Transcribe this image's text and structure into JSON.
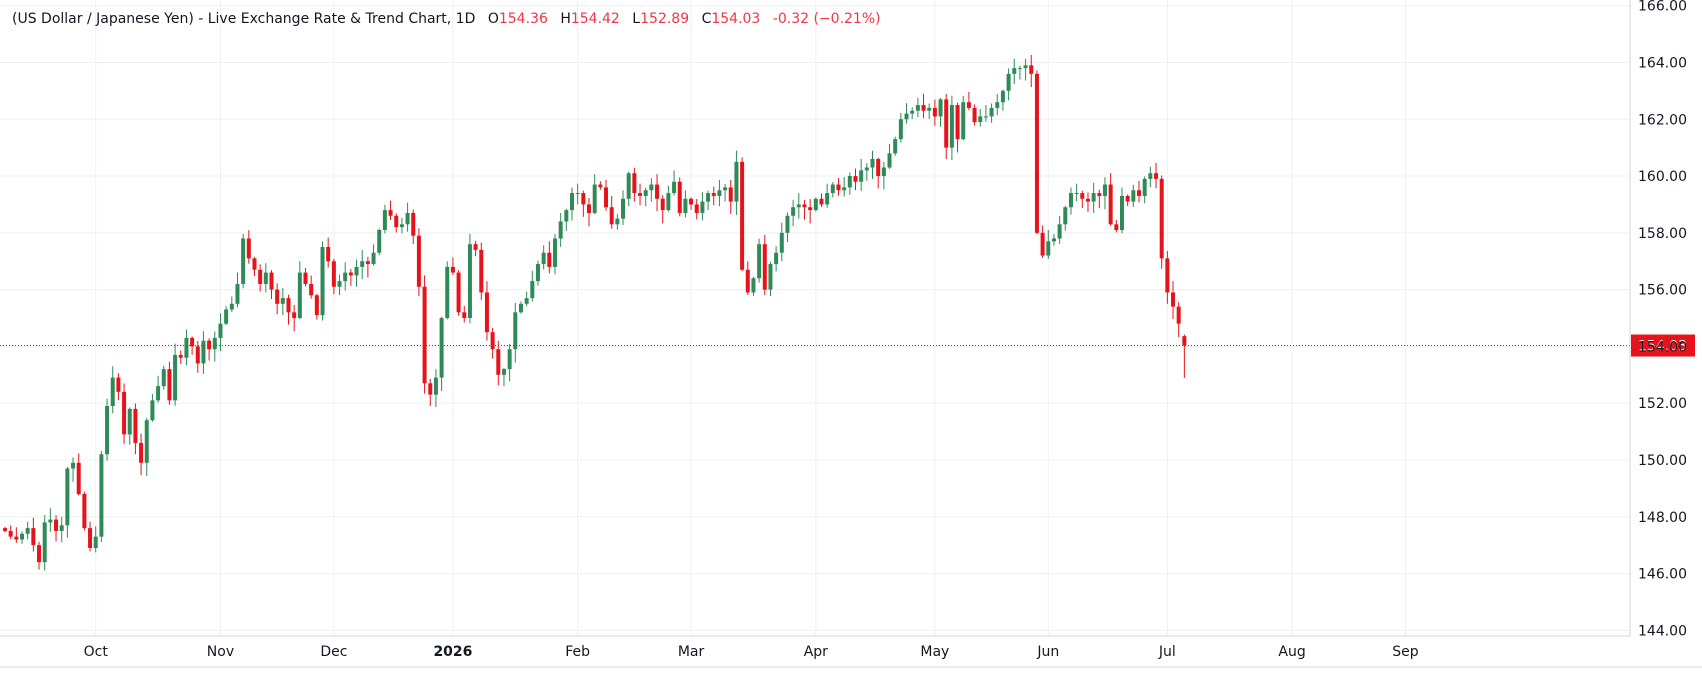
{
  "legend": {
    "title": "(US Dollar / Japanese Yen) - Live Exchange Rate & Trend Chart, 1D",
    "open_label": "O",
    "open": "154.36",
    "high_label": "H",
    "high": "154.42",
    "low_label": "L",
    "low": "152.89",
    "close_label": "C",
    "close": "154.03",
    "change": "-0.32 (−0.21%)"
  },
  "colors": {
    "up": "#2e8b57",
    "down": "#e8131a",
    "grid": "#eef0f3",
    "price_line": "#e8131a",
    "axis_text": "#131722"
  },
  "chart_data": {
    "type": "candlestick",
    "interval": "1D",
    "ylim": [
      143.8,
      166.2
    ],
    "y_ticks": [
      "144.00",
      "146.00",
      "148.00",
      "150.00",
      "152.00",
      "154.00",
      "156.00",
      "158.00",
      "160.00",
      "162.00",
      "164.00",
      "166.00"
    ],
    "x_labels": [
      {
        "text": "Oct",
        "index": 16
      },
      {
        "text": "Nov",
        "index": 38
      },
      {
        "text": "Dec",
        "index": 58
      },
      {
        "text": "2026",
        "index": 79,
        "bold": true
      },
      {
        "text": "Feb",
        "index": 101
      },
      {
        "text": "Mar",
        "index": 121
      },
      {
        "text": "Apr",
        "index": 143
      },
      {
        "text": "May",
        "index": 164
      },
      {
        "text": "Jun",
        "index": 184
      },
      {
        "text": "Jul",
        "index": 205
      },
      {
        "text": "Aug",
        "index": 227
      },
      {
        "text": "Sep",
        "index": 247
      }
    ],
    "last_price": 154.03,
    "last_price_label": "154.03",
    "closes": [
      147.5,
      147.3,
      147.2,
      147.4,
      147.6,
      147.0,
      146.4,
      147.8,
      147.9,
      147.5,
      147.7,
      149.7,
      149.9,
      148.8,
      147.6,
      146.9,
      147.3,
      150.2,
      151.9,
      152.9,
      152.4,
      150.9,
      151.8,
      150.6,
      149.9,
      151.4,
      152.1,
      152.6,
      153.2,
      152.1,
      153.7,
      153.6,
      154.3,
      154.0,
      153.4,
      154.2,
      153.9,
      154.3,
      154.8,
      155.3,
      155.5,
      156.2,
      157.8,
      157.1,
      156.7,
      156.2,
      156.6,
      156.0,
      155.5,
      155.7,
      155.2,
      155.0,
      156.6,
      156.2,
      155.8,
      155.1,
      157.5,
      157.0,
      156.1,
      156.3,
      156.6,
      156.5,
      156.8,
      157.0,
      156.9,
      157.3,
      158.1,
      158.8,
      158.6,
      158.2,
      158.3,
      158.7,
      157.9,
      156.1,
      152.7,
      152.3,
      152.9,
      155.0,
      156.8,
      156.6,
      155.2,
      155.0,
      157.6,
      157.4,
      155.9,
      154.5,
      153.9,
      153.0,
      153.2,
      153.9,
      155.2,
      155.5,
      155.7,
      156.3,
      156.9,
      157.3,
      156.8,
      157.8,
      158.4,
      158.8,
      159.4,
      159.4,
      159.0,
      158.7,
      159.7,
      159.6,
      158.9,
      158.3,
      158.5,
      159.2,
      160.1,
      159.4,
      159.3,
      159.5,
      159.7,
      159.2,
      158.8,
      159.4,
      159.8,
      158.7,
      159.2,
      159.0,
      158.7,
      159.1,
      159.4,
      159.3,
      159.5,
      159.6,
      159.1,
      160.5,
      156.7,
      155.9,
      156.4,
      157.6,
      156.0,
      156.9,
      157.3,
      158.0,
      158.6,
      158.9,
      159.0,
      158.9,
      158.8,
      159.2,
      159.0,
      159.4,
      159.7,
      159.5,
      159.6,
      160.0,
      159.8,
      160.2,
      160.3,
      160.6,
      160.0,
      160.3,
      160.8,
      161.3,
      162.0,
      162.2,
      162.3,
      162.5,
      162.3,
      162.4,
      162.1,
      162.7,
      161.0,
      162.5,
      161.3,
      162.6,
      162.4,
      161.9,
      162.1,
      162.1,
      162.4,
      162.6,
      163.0,
      163.6,
      163.8,
      163.8,
      163.9,
      163.6,
      158.0,
      157.2,
      157.7,
      157.8,
      158.3,
      158.9,
      159.4,
      159.4,
      159.2,
      159.1,
      159.4,
      159.3,
      159.7,
      158.3,
      158.1,
      159.3,
      159.1,
      159.5,
      159.3,
      159.9,
      160.1,
      159.9,
      157.1,
      155.9,
      155.4,
      154.8,
      154.03
    ],
    "opens": [
      147.6,
      147.5,
      147.3,
      147.2,
      147.4,
      147.6,
      147.0,
      146.4,
      147.8,
      147.9,
      147.5,
      147.7,
      149.7,
      149.9,
      148.8,
      147.6,
      146.9,
      147.3,
      150.2,
      151.9,
      152.9,
      152.4,
      150.9,
      151.8,
      150.6,
      149.9,
      151.4,
      152.1,
      152.6,
      153.2,
      152.1,
      153.7,
      153.6,
      154.3,
      154.0,
      153.4,
      154.2,
      153.9,
      154.3,
      154.8,
      155.3,
      155.5,
      156.2,
      157.8,
      157.1,
      156.7,
      156.2,
      156.6,
      156.0,
      155.5,
      155.7,
      155.2,
      155.0,
      156.6,
      156.2,
      155.8,
      155.1,
      157.5,
      157.0,
      156.1,
      156.3,
      156.6,
      156.5,
      156.8,
      157.0,
      156.9,
      157.3,
      158.1,
      158.8,
      158.6,
      158.2,
      158.3,
      158.7,
      157.9,
      156.1,
      152.7,
      152.3,
      152.9,
      155.0,
      156.8,
      156.6,
      155.2,
      155.0,
      157.6,
      157.4,
      155.9,
      154.5,
      153.9,
      153.0,
      153.2,
      153.9,
      155.2,
      155.5,
      155.7,
      156.3,
      156.9,
      157.3,
      156.8,
      157.8,
      158.4,
      158.8,
      159.4,
      159.4,
      159.0,
      158.7,
      159.7,
      159.6,
      158.9,
      158.3,
      158.5,
      159.2,
      160.1,
      159.4,
      159.3,
      159.5,
      159.7,
      159.2,
      158.8,
      159.4,
      159.8,
      158.7,
      159.2,
      159.0,
      158.7,
      159.1,
      159.4,
      159.3,
      159.5,
      159.6,
      159.1,
      160.5,
      156.7,
      155.9,
      156.4,
      157.6,
      156.0,
      156.9,
      157.3,
      158.0,
      158.6,
      158.9,
      159.0,
      158.9,
      158.8,
      159.2,
      159.0,
      159.4,
      159.7,
      159.5,
      159.6,
      160.0,
      159.8,
      160.2,
      160.3,
      160.6,
      160.0,
      160.3,
      160.8,
      161.3,
      162.0,
      162.2,
      162.3,
      162.5,
      162.3,
      162.4,
      162.1,
      162.7,
      161.0,
      162.5,
      161.3,
      162.6,
      162.4,
      161.9,
      162.1,
      162.1,
      162.4,
      162.6,
      163.0,
      163.6,
      163.8,
      163.8,
      163.9,
      163.6,
      158.0,
      157.2,
      157.7,
      157.8,
      158.3,
      158.9,
      159.4,
      159.4,
      159.2,
      159.1,
      159.4,
      159.3,
      159.7,
      158.3,
      158.1,
      159.3,
      159.1,
      159.5,
      159.3,
      159.9,
      160.1,
      159.9,
      157.1,
      155.9,
      155.4,
      154.36
    ]
  }
}
